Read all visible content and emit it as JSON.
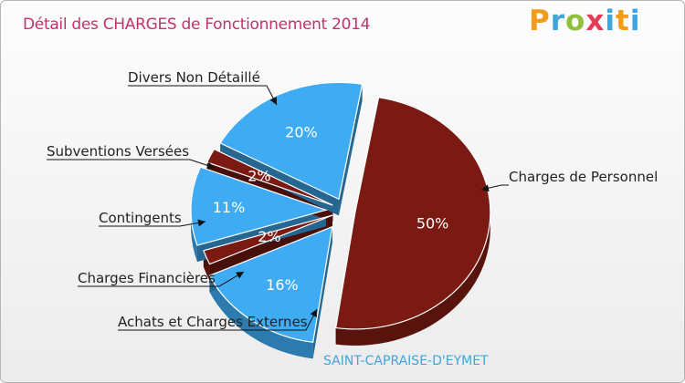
{
  "chart_data": {
    "type": "pie",
    "title": "Détail des CHARGES de Fonctionnement 2014",
    "subtitle": "SAINT-CAPRAISE-D'EYMET",
    "slices": [
      {
        "label": "Charges de Personnel",
        "value": 50,
        "value_label": "50%",
        "color": "#7a1a12"
      },
      {
        "label": "Achats et Charges Externes",
        "value": 16,
        "value_label": "16%",
        "color": "#3fabf2"
      },
      {
        "label": "Charges Financières",
        "value": 2,
        "value_label": "2%",
        "color": "#7a1a12"
      },
      {
        "label": "Contingents",
        "value": 11,
        "value_label": "11%",
        "color": "#3fabf2"
      },
      {
        "label": "Subventions Versées",
        "value": 2,
        "value_label": "2%",
        "color": "#7a1a12"
      },
      {
        "label": "Divers Non Détaillé",
        "value": 20,
        "value_label": "20%",
        "color": "#3fabf2"
      }
    ]
  },
  "logo": {
    "p": "P",
    "r": "r",
    "o": "o",
    "x": "x",
    "i": "i",
    "t": "t",
    "i2": "i"
  }
}
